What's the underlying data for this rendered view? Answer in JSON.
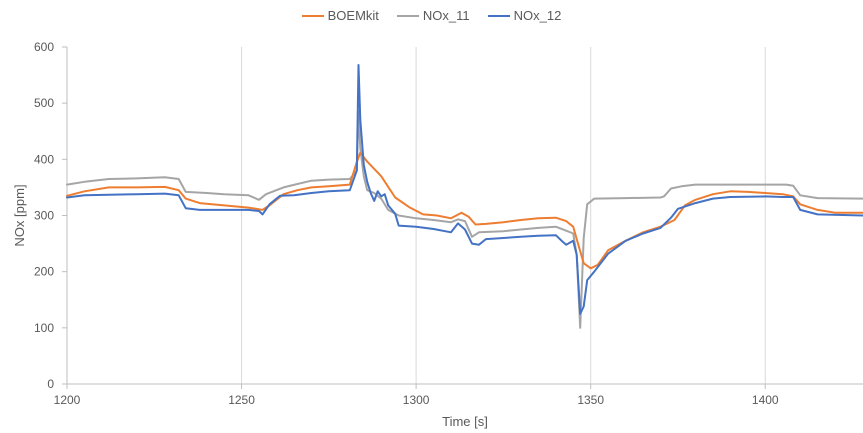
{
  "chart_data": {
    "type": "line",
    "xlabel": "Time [s]",
    "ylabel": "NOx [ppm]",
    "xlim": [
      1200,
      1428
    ],
    "ylim": [
      0,
      600
    ],
    "x_ticks": [
      "1200",
      "1250",
      "1300",
      "1350",
      "1400"
    ],
    "y_ticks": [
      "0",
      "100",
      "200",
      "300",
      "400",
      "500",
      "600"
    ],
    "grid": "vertical",
    "legend_position": "top",
    "series": [
      {
        "name": "BOEMkit",
        "color": "#ED7D31",
        "points": [
          [
            1200,
            335
          ],
          [
            1205,
            343
          ],
          [
            1212,
            350
          ],
          [
            1220,
            350
          ],
          [
            1228,
            351
          ],
          [
            1232,
            345
          ],
          [
            1234,
            330
          ],
          [
            1238,
            322
          ],
          [
            1245,
            318
          ],
          [
            1252,
            314
          ],
          [
            1256,
            310
          ],
          [
            1258,
            318
          ],
          [
            1262,
            338
          ],
          [
            1266,
            345
          ],
          [
            1270,
            350
          ],
          [
            1275,
            352
          ],
          [
            1281,
            355
          ],
          [
            1283,
            395
          ],
          [
            1284,
            412
          ],
          [
            1286,
            396
          ],
          [
            1290,
            370
          ],
          [
            1294,
            332
          ],
          [
            1298,
            315
          ],
          [
            1302,
            302
          ],
          [
            1306,
            300
          ],
          [
            1310,
            295
          ],
          [
            1313,
            305
          ],
          [
            1315,
            298
          ],
          [
            1317,
            284
          ],
          [
            1320,
            285
          ],
          [
            1325,
            288
          ],
          [
            1330,
            292
          ],
          [
            1335,
            295
          ],
          [
            1340,
            296
          ],
          [
            1343,
            290
          ],
          [
            1345,
            280
          ],
          [
            1346,
            258
          ],
          [
            1348,
            215
          ],
          [
            1350,
            206
          ],
          [
            1352,
            212
          ],
          [
            1355,
            238
          ],
          [
            1360,
            255
          ],
          [
            1365,
            270
          ],
          [
            1370,
            280
          ],
          [
            1374,
            292
          ],
          [
            1377,
            318
          ],
          [
            1380,
            328
          ],
          [
            1385,
            338
          ],
          [
            1390,
            343
          ],
          [
            1395,
            342
          ],
          [
            1400,
            340
          ],
          [
            1405,
            338
          ],
          [
            1408,
            334
          ],
          [
            1410,
            320
          ],
          [
            1415,
            310
          ],
          [
            1420,
            305
          ],
          [
            1428,
            305
          ]
        ]
      },
      {
        "name": "NOx_11",
        "color": "#A5A5A5",
        "points": [
          [
            1200,
            355
          ],
          [
            1205,
            360
          ],
          [
            1212,
            365
          ],
          [
            1220,
            366
          ],
          [
            1228,
            368
          ],
          [
            1232,
            365
          ],
          [
            1234,
            342
          ],
          [
            1240,
            340
          ],
          [
            1245,
            338
          ],
          [
            1252,
            336
          ],
          [
            1255,
            328
          ],
          [
            1257,
            338
          ],
          [
            1262,
            350
          ],
          [
            1266,
            356
          ],
          [
            1270,
            362
          ],
          [
            1275,
            364
          ],
          [
            1281,
            365
          ],
          [
            1283,
            380
          ],
          [
            1283.5,
            486
          ],
          [
            1284,
            420
          ],
          [
            1285,
            370
          ],
          [
            1286,
            345
          ],
          [
            1288,
            340
          ],
          [
            1290,
            330
          ],
          [
            1292,
            310
          ],
          [
            1295,
            300
          ],
          [
            1300,
            295
          ],
          [
            1305,
            292
          ],
          [
            1310,
            288
          ],
          [
            1312,
            293
          ],
          [
            1314,
            290
          ],
          [
            1316,
            262
          ],
          [
            1318,
            270
          ],
          [
            1325,
            272
          ],
          [
            1330,
            275
          ],
          [
            1335,
            278
          ],
          [
            1340,
            280
          ],
          [
            1343,
            273
          ],
          [
            1345,
            268
          ],
          [
            1346,
            230
          ],
          [
            1347,
            100
          ],
          [
            1348,
            260
          ],
          [
            1349,
            320
          ],
          [
            1351,
            330
          ],
          [
            1360,
            331
          ],
          [
            1370,
            332
          ],
          [
            1371,
            334
          ],
          [
            1373,
            348
          ],
          [
            1376,
            352
          ],
          [
            1380,
            355
          ],
          [
            1390,
            355
          ],
          [
            1400,
            355
          ],
          [
            1406,
            355
          ],
          [
            1408,
            353
          ],
          [
            1410,
            336
          ],
          [
            1415,
            331
          ],
          [
            1428,
            330
          ]
        ]
      },
      {
        "name": "NOx_12",
        "color": "#4472C4",
        "points": [
          [
            1200,
            332
          ],
          [
            1205,
            336
          ],
          [
            1212,
            337
          ],
          [
            1220,
            338
          ],
          [
            1228,
            339
          ],
          [
            1232,
            336
          ],
          [
            1234,
            313
          ],
          [
            1238,
            310
          ],
          [
            1245,
            310
          ],
          [
            1252,
            310
          ],
          [
            1255,
            308
          ],
          [
            1256,
            302
          ],
          [
            1258,
            320
          ],
          [
            1261,
            335
          ],
          [
            1265,
            336
          ],
          [
            1270,
            340
          ],
          [
            1275,
            343
          ],
          [
            1281,
            345
          ],
          [
            1283,
            380
          ],
          [
            1283.5,
            568
          ],
          [
            1284,
            470
          ],
          [
            1285,
            390
          ],
          [
            1286,
            360
          ],
          [
            1287,
            340
          ],
          [
            1288,
            326
          ],
          [
            1289,
            343
          ],
          [
            1290,
            334
          ],
          [
            1291,
            338
          ],
          [
            1292,
            318
          ],
          [
            1294,
            303
          ],
          [
            1295,
            282
          ],
          [
            1300,
            280
          ],
          [
            1305,
            276
          ],
          [
            1310,
            270
          ],
          [
            1312,
            286
          ],
          [
            1314,
            275
          ],
          [
            1316,
            250
          ],
          [
            1318,
            248
          ],
          [
            1320,
            258
          ],
          [
            1325,
            260
          ],
          [
            1330,
            262
          ],
          [
            1335,
            264
          ],
          [
            1340,
            265
          ],
          [
            1342,
            253
          ],
          [
            1343,
            248
          ],
          [
            1345,
            255
          ],
          [
            1346,
            230
          ],
          [
            1347,
            125
          ],
          [
            1348,
            138
          ],
          [
            1349,
            185
          ],
          [
            1351,
            200
          ],
          [
            1355,
            232
          ],
          [
            1360,
            255
          ],
          [
            1365,
            268
          ],
          [
            1370,
            278
          ],
          [
            1373,
            296
          ],
          [
            1375,
            312
          ],
          [
            1380,
            322
          ],
          [
            1385,
            330
          ],
          [
            1390,
            333
          ],
          [
            1400,
            334
          ],
          [
            1405,
            333
          ],
          [
            1408,
            333
          ],
          [
            1410,
            310
          ],
          [
            1415,
            302
          ],
          [
            1428,
            300
          ]
        ]
      }
    ]
  }
}
